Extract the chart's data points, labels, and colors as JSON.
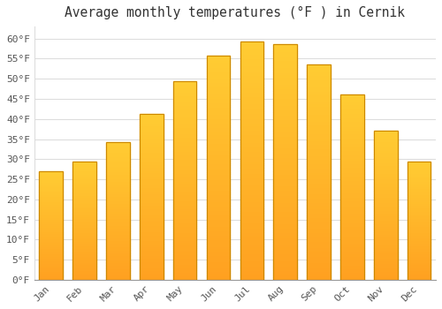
{
  "title": "Average monthly temperatures (°F ) in Cernik",
  "months": [
    "Jan",
    "Feb",
    "Mar",
    "Apr",
    "May",
    "Jun",
    "Jul",
    "Aug",
    "Sep",
    "Oct",
    "Nov",
    "Dec"
  ],
  "values": [
    27.0,
    29.3,
    34.2,
    41.2,
    49.3,
    55.8,
    59.2,
    58.7,
    53.5,
    46.0,
    37.0,
    29.5
  ],
  "bar_color_top": "#FFCC33",
  "bar_color_bottom": "#FFA020",
  "bar_edge_color": "#CC8800",
  "background_color": "#FFFFFF",
  "plot_bg_color": "#FFFFFF",
  "grid_color": "#DDDDDD",
  "text_color": "#555555",
  "title_color": "#333333",
  "ylim": [
    0,
    63
  ],
  "yticks": [
    0,
    5,
    10,
    15,
    20,
    25,
    30,
    35,
    40,
    45,
    50,
    55,
    60
  ],
  "ytick_labels": [
    "0°F",
    "5°F",
    "10°F",
    "15°F",
    "20°F",
    "25°F",
    "30°F",
    "35°F",
    "40°F",
    "45°F",
    "50°F",
    "55°F",
    "60°F"
  ],
  "title_fontsize": 10.5,
  "tick_fontsize": 8,
  "font_family": "monospace",
  "bar_width": 0.7
}
